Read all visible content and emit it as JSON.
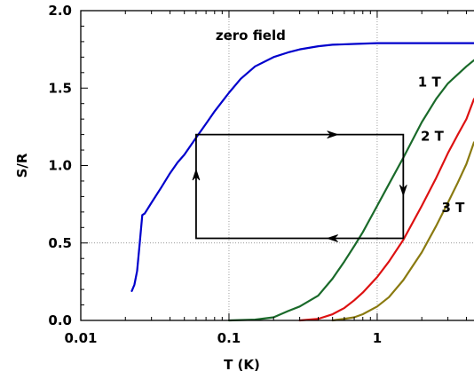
{
  "chart_data": {
    "type": "line",
    "xlabel": "T (K)",
    "ylabel": "S/R",
    "xscale": "log",
    "xlim": [
      0.01,
      4.5
    ],
    "ylim": [
      0,
      2.0
    ],
    "xticks": [
      {
        "value": 0.01,
        "label": "0.01"
      },
      {
        "value": 0.1,
        "label": "0.1"
      },
      {
        "value": 1,
        "label": "1"
      }
    ],
    "yticks": [
      {
        "value": 0.0,
        "label": "0.0"
      },
      {
        "value": 0.5,
        "label": "0.5"
      },
      {
        "value": 1.0,
        "label": "1.0"
      },
      {
        "value": 1.5,
        "label": "1.5"
      },
      {
        "value": 2.0,
        "label": "2.0"
      }
    ],
    "grid": {
      "vertical_dotted_at_x": [
        0.1,
        1
      ],
      "horizontal_dotted_at_y": [
        0.5
      ]
    },
    "series": [
      {
        "name": "zero field",
        "color": "#0000cc",
        "x": [
          0.0221,
          0.023,
          0.024,
          0.025,
          0.026,
          0.027,
          0.03,
          0.035,
          0.04,
          0.045,
          0.05,
          0.06,
          0.07,
          0.08,
          0.1,
          0.12,
          0.15,
          0.2,
          0.25,
          0.3,
          0.4,
          0.5,
          0.7,
          1.0,
          1.5,
          2.0,
          3.0,
          4.5
        ],
        "y": [
          0.19,
          0.23,
          0.32,
          0.5,
          0.68,
          0.69,
          0.76,
          0.86,
          0.95,
          1.02,
          1.07,
          1.18,
          1.27,
          1.35,
          1.47,
          1.56,
          1.64,
          1.7,
          1.73,
          1.75,
          1.77,
          1.78,
          1.785,
          1.79,
          1.79,
          1.79,
          1.79,
          1.79
        ]
      },
      {
        "name": "1 T",
        "color": "#1a6a2a",
        "x": [
          0.1,
          0.15,
          0.2,
          0.25,
          0.3,
          0.4,
          0.5,
          0.6,
          0.7,
          0.8,
          1.0,
          1.2,
          1.5,
          2.0,
          2.5,
          3.0,
          4.0,
          4.5
        ],
        "y": [
          0.0,
          0.005,
          0.02,
          0.06,
          0.09,
          0.16,
          0.27,
          0.38,
          0.48,
          0.57,
          0.74,
          0.88,
          1.05,
          1.28,
          1.43,
          1.53,
          1.64,
          1.68
        ]
      },
      {
        "name": "2 T",
        "color": "#dd1111",
        "x": [
          0.3,
          0.4,
          0.5,
          0.6,
          0.7,
          0.8,
          1.0,
          1.2,
          1.5,
          2.0,
          2.5,
          3.0,
          3.5,
          4.0,
          4.5
        ],
        "y": [
          0.0,
          0.01,
          0.04,
          0.08,
          0.13,
          0.18,
          0.28,
          0.38,
          0.52,
          0.74,
          0.92,
          1.08,
          1.2,
          1.3,
          1.43
        ]
      },
      {
        "name": "3 T",
        "color": "#8a7a10",
        "x": [
          0.5,
          0.6,
          0.7,
          0.8,
          1.0,
          1.2,
          1.5,
          2.0,
          2.5,
          3.0,
          3.5,
          4.0,
          4.5
        ],
        "y": [
          0.0,
          0.01,
          0.02,
          0.04,
          0.09,
          0.15,
          0.26,
          0.44,
          0.61,
          0.76,
          0.89,
          1.01,
          1.15
        ]
      }
    ],
    "cycle": {
      "color": "#000000",
      "corners": [
        {
          "x": 0.06,
          "y": 1.2
        },
        {
          "x": 1.5,
          "y": 1.2
        },
        {
          "x": 1.5,
          "y": 0.53
        },
        {
          "x": 0.06,
          "y": 0.53
        }
      ],
      "arrows": [
        {
          "x": 0.5,
          "y": 1.2,
          "direction": "right"
        },
        {
          "x": 1.5,
          "y": 0.84,
          "direction": "down"
        },
        {
          "x": 0.5,
          "y": 0.53,
          "direction": "left"
        },
        {
          "x": 0.06,
          "y": 0.94,
          "direction": "up"
        }
      ]
    },
    "annotations": [
      {
        "text": "zero field",
        "x": 0.14,
        "y": 1.81
      },
      {
        "text": "1 T",
        "x": 2.25,
        "y": 1.51
      },
      {
        "text": "2 T",
        "x": 2.35,
        "y": 1.16
      },
      {
        "text": "3 T",
        "x": 3.25,
        "y": 0.7
      }
    ]
  }
}
